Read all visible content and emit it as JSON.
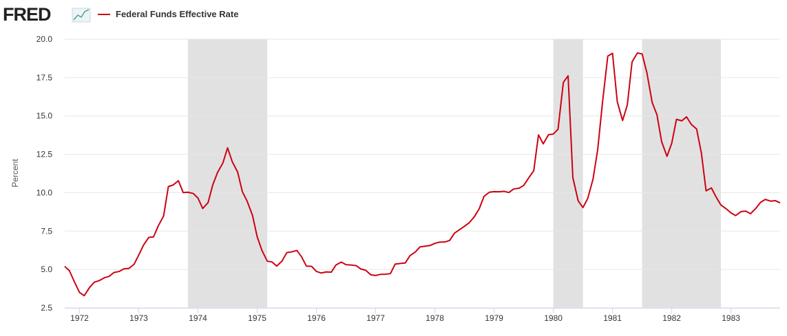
{
  "header": {
    "logo": "FRED"
  },
  "chart_data": {
    "type": "line",
    "ylabel": "Percent",
    "x": [
      1971.75,
      1971.83,
      1971.92,
      1972,
      1972.08,
      1972.17,
      1972.25,
      1972.33,
      1972.42,
      1972.5,
      1972.58,
      1972.67,
      1972.75,
      1972.83,
      1972.92,
      1973,
      1973.08,
      1973.17,
      1973.25,
      1973.33,
      1973.42,
      1973.5,
      1973.58,
      1973.67,
      1973.75,
      1973.83,
      1973.92,
      1974,
      1974.08,
      1974.17,
      1974.25,
      1974.33,
      1974.42,
      1974.5,
      1974.58,
      1974.67,
      1974.75,
      1974.83,
      1974.92,
      1975,
      1975.08,
      1975.17,
      1975.25,
      1975.33,
      1975.42,
      1975.5,
      1975.58,
      1975.67,
      1975.75,
      1975.83,
      1975.92,
      1976,
      1976.08,
      1976.17,
      1976.25,
      1976.33,
      1976.42,
      1976.5,
      1976.58,
      1976.67,
      1976.75,
      1976.83,
      1976.92,
      1977,
      1977.08,
      1977.17,
      1977.25,
      1977.33,
      1977.42,
      1977.5,
      1977.58,
      1977.67,
      1977.75,
      1977.83,
      1977.92,
      1978,
      1978.08,
      1978.17,
      1978.25,
      1978.33,
      1978.42,
      1978.5,
      1978.58,
      1978.67,
      1978.75,
      1978.83,
      1978.92,
      1979,
      1979.08,
      1979.17,
      1979.25,
      1979.33,
      1979.42,
      1979.5,
      1979.58,
      1979.67,
      1979.75,
      1979.83,
      1979.92,
      1980,
      1980.08,
      1980.17,
      1980.25,
      1980.33,
      1980.42,
      1980.5,
      1980.58,
      1980.67,
      1980.75,
      1980.83,
      1980.92,
      1981,
      1981.08,
      1981.17,
      1981.25,
      1981.33,
      1981.42,
      1981.5,
      1981.58,
      1981.67,
      1981.75,
      1981.83,
      1981.92,
      1982,
      1982.08,
      1982.17,
      1982.25,
      1982.33,
      1982.42,
      1982.5,
      1982.58,
      1982.67,
      1982.75,
      1982.83,
      1982.92,
      1983,
      1983.08,
      1983.17,
      1983.25,
      1983.33,
      1983.42,
      1983.5,
      1983.58,
      1983.67,
      1983.75,
      1983.83
    ],
    "series": [
      {
        "name": "Federal Funds Effective Rate",
        "color": "#cc0011",
        "values": [
          5.2,
          4.91,
          4.14,
          3.5,
          3.29,
          3.83,
          4.17,
          4.27,
          4.46,
          4.55,
          4.8,
          4.87,
          5.04,
          5.06,
          5.33,
          5.94,
          6.58,
          7.09,
          7.12,
          7.84,
          8.49,
          10.4,
          10.5,
          10.78,
          10.01,
          10.03,
          9.95,
          9.65,
          8.97,
          9.35,
          10.51,
          11.31,
          11.93,
          12.92,
          12.01,
          11.34,
          10.06,
          9.45,
          8.53,
          7.13,
          6.24,
          5.54,
          5.49,
          5.22,
          5.55,
          6.1,
          6.14,
          6.24,
          5.82,
          5.22,
          5.2,
          4.87,
          4.77,
          4.84,
          4.82,
          5.29,
          5.48,
          5.31,
          5.29,
          5.25,
          5.03,
          4.95,
          4.65,
          4.61,
          4.68,
          4.69,
          4.73,
          5.35,
          5.39,
          5.42,
          5.9,
          6.14,
          6.47,
          6.51,
          6.56,
          6.7,
          6.78,
          6.79,
          6.89,
          7.36,
          7.6,
          7.81,
          8.04,
          8.45,
          8.96,
          9.76,
          10.03,
          10.07,
          10.06,
          10.09,
          10.01,
          10.24,
          10.29,
          10.47,
          10.94,
          11.43,
          13.77,
          13.18,
          13.78,
          13.82,
          14.13,
          17.19,
          17.61,
          10.98,
          9.47,
          9.03,
          9.61,
          10.87,
          12.81,
          15.85,
          18.9,
          19.08,
          15.93,
          14.7,
          15.72,
          18.52,
          19.1,
          19.04,
          17.82,
          15.87,
          15.08,
          13.31,
          12.37,
          13.22,
          14.78,
          14.68,
          14.94,
          14.45,
          14.15,
          12.59,
          10.12,
          10.31,
          9.71,
          9.2,
          8.95,
          8.68,
          8.51,
          8.77,
          8.8,
          8.63,
          8.98,
          9.37,
          9.56,
          9.45,
          9.48,
          9.34
        ]
      }
    ],
    "recessions": [
      [
        1973.83,
        1975.17
      ],
      [
        1980,
        1980.5
      ],
      [
        1981.5,
        1982.83
      ]
    ],
    "recession_color": "#e1e1e1",
    "xlim": [
      1971.75,
      1983.83
    ],
    "xticks": [
      1972,
      1973,
      1974,
      1975,
      1976,
      1977,
      1978,
      1979,
      1980,
      1981,
      1982,
      1983
    ],
    "ylim": [
      2.5,
      20
    ],
    "yticks": [
      2.5,
      {
        "value": 5,
        "label": "5.0"
      },
      7.5,
      {
        "value": 10,
        "label": "10.0"
      },
      12.5,
      {
        "value": 15,
        "label": "15.0"
      },
      17.5,
      {
        "value": 20,
        "label": "20.0"
      }
    ],
    "grid": true
  }
}
